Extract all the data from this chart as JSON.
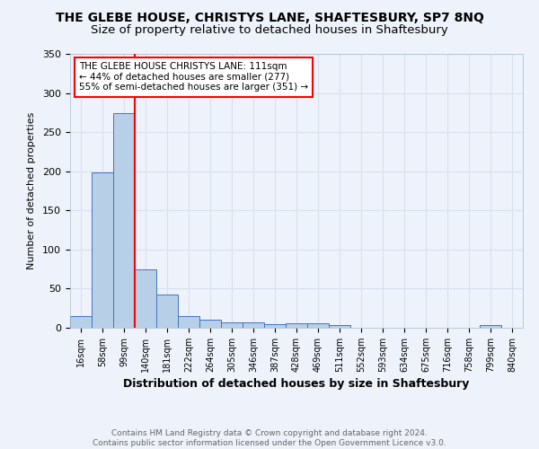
{
  "title1": "THE GLEBE HOUSE, CHRISTYS LANE, SHAFTESBURY, SP7 8NQ",
  "title2": "Size of property relative to detached houses in Shaftesbury",
  "xlabel": "Distribution of detached houses by size in Shaftesbury",
  "ylabel": "Number of detached properties",
  "categories": [
    "16sqm",
    "58sqm",
    "99sqm",
    "140sqm",
    "181sqm",
    "222sqm",
    "264sqm",
    "305sqm",
    "346sqm",
    "387sqm",
    "428sqm",
    "469sqm",
    "511sqm",
    "552sqm",
    "593sqm",
    "634sqm",
    "675sqm",
    "716sqm",
    "758sqm",
    "799sqm",
    "840sqm"
  ],
  "values": [
    15,
    198,
    274,
    75,
    42,
    15,
    10,
    7,
    7,
    5,
    6,
    6,
    3,
    0,
    0,
    0,
    0,
    0,
    0,
    3,
    0
  ],
  "bar_color": "#b8cfe8",
  "bar_edge_color": "#4472c4",
  "red_line_x": 2.5,
  "annotation_lines": [
    "THE GLEBE HOUSE CHRISTYS LANE: 111sqm",
    "← 44% of detached houses are smaller (277)",
    "55% of semi-detached houses are larger (351) →"
  ],
  "ylim": [
    0,
    350
  ],
  "yticks": [
    0,
    50,
    100,
    150,
    200,
    250,
    300,
    350
  ],
  "footer1": "Contains HM Land Registry data © Crown copyright and database right 2024.",
  "footer2": "Contains public sector information licensed under the Open Government Licence v3.0.",
  "bg_color": "#eef2fa",
  "grid_color": "#d8e0ef",
  "title1_fontsize": 10,
  "title2_fontsize": 9.5,
  "ann_fontsize": 7.5,
  "footer_fontsize": 6.5
}
